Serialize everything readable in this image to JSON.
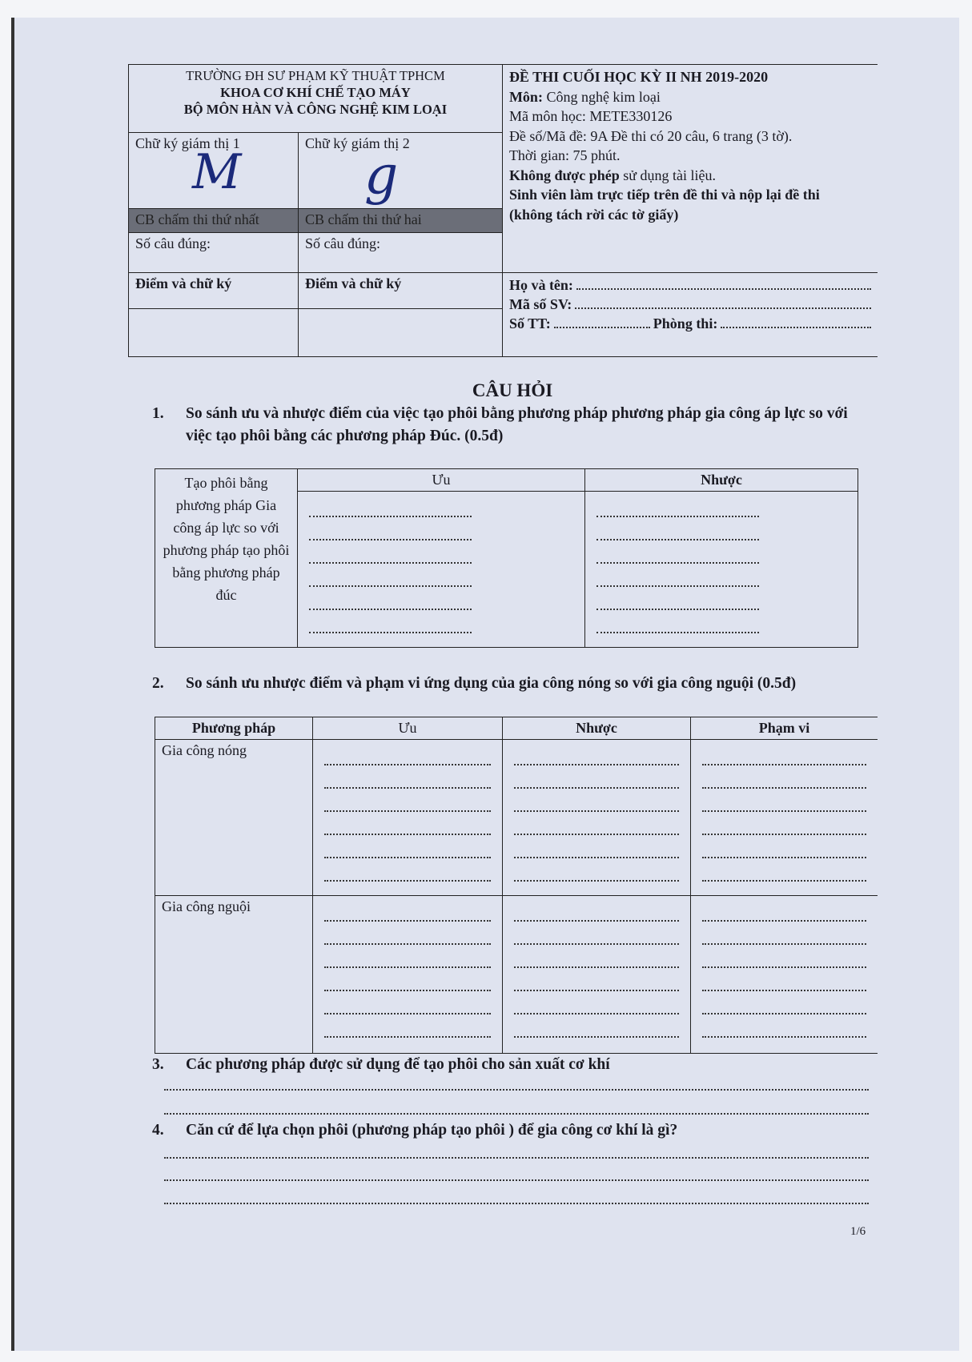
{
  "header": {
    "school": "TRƯỜNG ĐH SƯ PHẠM KỸ THUẬT TPHCM",
    "faculty": "KHOA CƠ KHÍ CHẾ TẠO MÁY",
    "department": "BỘ MÔN HÀN VÀ CÔNG NGHỆ KIM LOẠI",
    "sig1": "Chữ ký giám thị 1",
    "sig2": "Chữ ký giám thị 2",
    "grader1": "CB chấm thi thứ nhất",
    "grader2": "CB chấm thi thứ hai",
    "correct1": "Số câu đúng:",
    "correct2": "Số câu đúng:",
    "score1": "Điểm và chữ ký",
    "score2": "Điểm và chữ ký",
    "exam_title": "ĐỀ THI CUỐI HỌC KỲ II NH 2019-2020",
    "subject_label": "Môn:",
    "subject": "Công nghệ kim loại",
    "code": "Mã môn học: METE330126",
    "version": "Đề số/Mã đề: 9A Đề thi có 20 câu, 6 trang (3 tờ).",
    "time": "Thời gian: 75 phút.",
    "rule1_bold": "Không được phép",
    "rule1_rest": "sử dụng tài liệu.",
    "rule2": "Sinh viên làm trực tiếp trên đề thi và nộp lại đề thi",
    "rule3": "(không tách rời các tờ giấy)",
    "name": "Họ và tên:",
    "student_id": "Mã số SV:",
    "seq": "Số TT:",
    "room": "Phòng thi:"
  },
  "section_title": "CÂU HỎI",
  "q1": {
    "num": "1.",
    "text": "So sánh ưu và nhược điểm của việc tạo phôi bằng phương pháp phương pháp gia công áp lực so với việc tạo phôi bằng các phương pháp Đúc. (0.5đ)",
    "row_label": "Tạo phôi bằng phương pháp Gia công áp lực so với phương pháp tạo phôi bằng phương pháp đúc",
    "col_pro": "Ưu",
    "col_con": "Nhược"
  },
  "q2": {
    "num": "2.",
    "text": "So sánh ưu nhược điểm và phạm vi ứng dụng của gia công nóng so với gia công nguội (0.5đ)",
    "cols": [
      "Phương pháp",
      "Ưu",
      "Nhược",
      "Phạm vi"
    ],
    "rows": [
      "Gia công nóng",
      "Gia công nguội"
    ]
  },
  "q3": {
    "num": "3.",
    "text": "Các phương pháp được sử dụng để tạo phôi cho sản xuất cơ khí"
  },
  "q4": {
    "num": "4.",
    "text": "Căn cứ để lựa chọn phôi (phương pháp tạo phôi ) để gia công cơ khí là gì?"
  },
  "page_number": "1/6"
}
